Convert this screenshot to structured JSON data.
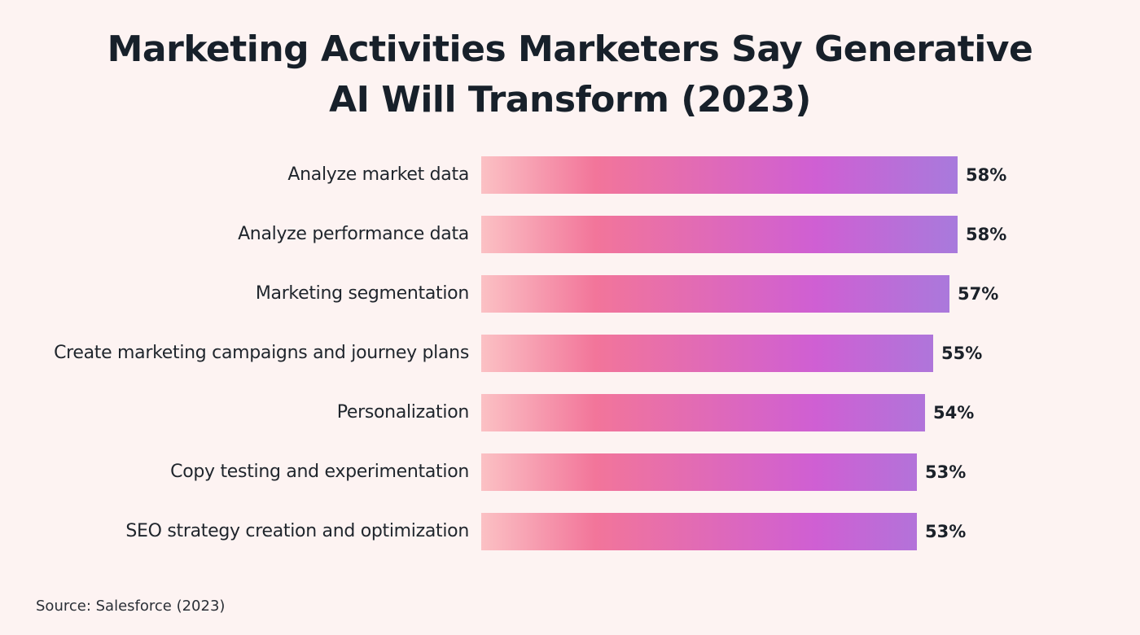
{
  "chart_data": {
    "type": "bar",
    "orientation": "horizontal",
    "title": "Marketing Activities Marketers Say Generative AI Will Transform (2023)",
    "title_lines": [
      "Marketing Activities Marketers Say Generative",
      "AI Will Transform (2023)"
    ],
    "categories": [
      "Analyze market data",
      "Analyze performance data",
      "Marketing segmentation",
      "Create marketing campaigns and journey plans",
      "Personalization",
      "Copy testing and experimentation",
      "SEO strategy creation and optimization"
    ],
    "values": [
      58,
      58,
      57,
      55,
      54,
      53,
      53
    ],
    "value_labels": [
      "58%",
      "58%",
      "57%",
      "55%",
      "54%",
      "53%",
      "53%"
    ],
    "unit": "%",
    "xlabel": "",
    "ylabel": "",
    "xlim": [
      0,
      58
    ],
    "grid": false,
    "legend": "none",
    "source": "Source: Salesforce (2023)",
    "colors": {
      "background": "#fdf3f2",
      "gradient": [
        "#fbc1c4",
        "#f2759a",
        "#cf5fd3",
        "#a87adc"
      ],
      "text": "#1b2129"
    }
  }
}
